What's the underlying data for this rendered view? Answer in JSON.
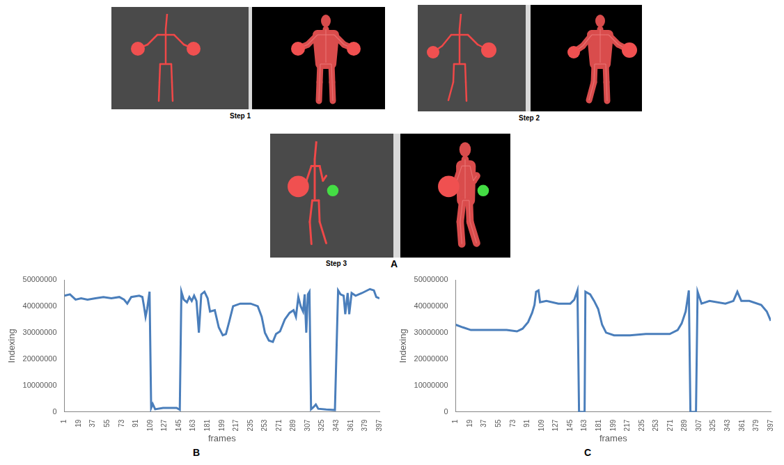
{
  "panel_a": {
    "letter": "A",
    "steps": [
      "Step 1",
      "Step 2",
      "Step 3"
    ]
  },
  "chart_data": [
    {
      "type": "line",
      "panel": "B",
      "x_label": "frames",
      "y_label": "Indexing",
      "xlim": [
        1,
        397
      ],
      "xticks": [
        1,
        19,
        37,
        55,
        73,
        91,
        109,
        127,
        145,
        163,
        181,
        199,
        217,
        235,
        253,
        271,
        289,
        307,
        325,
        343,
        361,
        379,
        397
      ],
      "ylim": [
        0,
        50000000
      ],
      "yticks": [
        0,
        10000000,
        20000000,
        30000000,
        40000000,
        50000000
      ],
      "grid": false,
      "color": "#4a7ebb",
      "marker": "none",
      "line_style": "solid",
      "x": [
        1,
        8,
        15,
        22,
        30,
        40,
        50,
        60,
        70,
        76,
        80,
        85,
        95,
        99,
        101,
        103,
        105,
        108,
        110,
        112,
        115,
        125,
        135,
        142,
        146,
        148,
        151,
        155,
        158,
        161,
        164,
        167,
        170,
        173,
        177,
        181,
        184,
        190,
        195,
        200,
        204,
        208,
        213,
        222,
        235,
        244,
        249,
        253,
        258,
        263,
        267,
        272,
        278,
        284,
        289,
        292,
        295,
        298,
        301,
        303,
        305,
        307,
        309,
        311,
        314,
        317,
        320,
        330,
        341,
        345,
        348,
        352,
        354,
        357,
        359,
        362,
        367,
        375,
        385,
        390,
        393,
        397
      ],
      "values": [
        44000000,
        44500000,
        42500000,
        43000000,
        42500000,
        43000000,
        43500000,
        43000000,
        43500000,
        42500000,
        41000000,
        43500000,
        44000000,
        43500000,
        40000000,
        36000000,
        39000000,
        45500000,
        1500000,
        3000000,
        1000000,
        1500000,
        1500000,
        1500000,
        800000,
        45500000,
        42500000,
        41500000,
        43500000,
        42000000,
        44000000,
        42000000,
        30000000,
        44500000,
        45500000,
        43000000,
        38000000,
        38500000,
        32000000,
        29000000,
        29500000,
        34000000,
        40000000,
        41000000,
        41000000,
        40000000,
        36000000,
        30000000,
        27000000,
        26500000,
        29500000,
        30500000,
        35000000,
        37500000,
        38500000,
        36000000,
        43500000,
        40000000,
        38000000,
        44500000,
        30000000,
        44500000,
        45500000,
        1000000,
        1800000,
        2800000,
        1200000,
        900000,
        700000,
        46000000,
        44500000,
        44000000,
        37000000,
        45000000,
        37000000,
        45000000,
        44000000,
        45000000,
        46500000,
        46000000,
        43500000,
        43000000
      ]
    },
    {
      "type": "line",
      "panel": "C",
      "x_label": "frames",
      "y_label": "Indexing",
      "xlim": [
        1,
        397
      ],
      "xticks": [
        1,
        19,
        37,
        55,
        73,
        91,
        109,
        127,
        145,
        163,
        181,
        199,
        217,
        235,
        253,
        271,
        289,
        307,
        325,
        343,
        361,
        379,
        397
      ],
      "ylim": [
        0,
        50000000
      ],
      "yticks": [
        0,
        10000000,
        20000000,
        30000000,
        40000000,
        50000000
      ],
      "grid": false,
      "color": "#4a7ebb",
      "marker": "none",
      "line_style": "solid",
      "x": [
        1,
        10,
        20,
        35,
        50,
        65,
        78,
        85,
        92,
        97,
        100,
        102,
        105,
        107,
        115,
        130,
        145,
        150,
        154,
        156,
        163,
        164,
        170,
        175,
        180,
        185,
        190,
        200,
        220,
        240,
        270,
        280,
        285,
        290,
        294,
        296,
        303,
        305,
        310,
        320,
        340,
        350,
        355,
        360,
        370,
        385,
        392,
        397
      ],
      "values": [
        33000000,
        32000000,
        31000000,
        31000000,
        31000000,
        31000000,
        30500000,
        31500000,
        34000000,
        37500000,
        40500000,
        45500000,
        46000000,
        41500000,
        42000000,
        41000000,
        41000000,
        42500000,
        46000000,
        0,
        0,
        45500000,
        44500000,
        42000000,
        39000000,
        33000000,
        30000000,
        29000000,
        29000000,
        29500000,
        29500000,
        31000000,
        33500000,
        38000000,
        46000000,
        0,
        0,
        45500000,
        41000000,
        42000000,
        41000000,
        42000000,
        45500000,
        42000000,
        42000000,
        40500000,
        38000000,
        34500000
      ]
    }
  ]
}
